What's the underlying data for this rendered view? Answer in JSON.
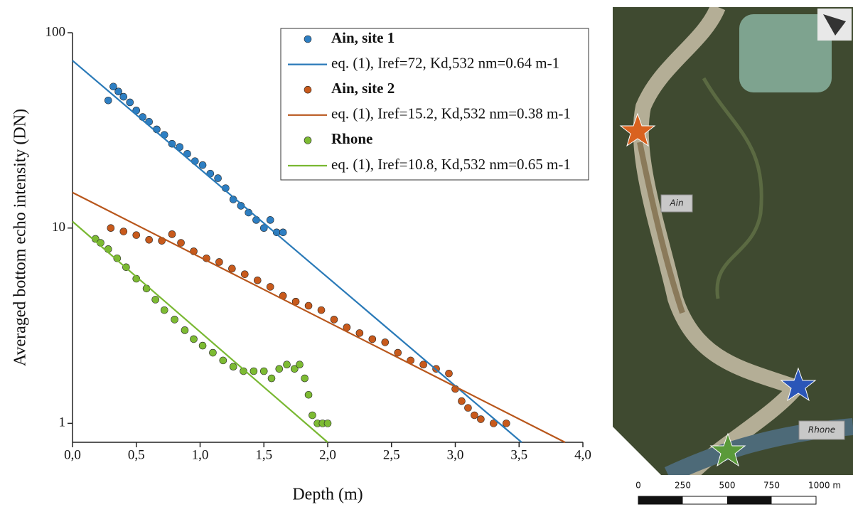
{
  "chart_data": {
    "type": "scatter",
    "x_label": "Depth (m)",
    "y_label": "Averaged bottom echo intensity (DN)",
    "log_y": true,
    "xlim": [
      0,
      4.0
    ],
    "xticks": [
      {
        "value": 0,
        "label": "0,0"
      },
      {
        "value": 0.5,
        "label": "0,5"
      },
      {
        "value": 1.0,
        "label": "1,0"
      },
      {
        "value": 1.5,
        "label": "1,5"
      },
      {
        "value": 2.0,
        "label": "2,0"
      },
      {
        "value": 2.5,
        "label": "2,5"
      },
      {
        "value": 3.0,
        "label": "3,0"
      },
      {
        "value": 3.5,
        "label": "3,5"
      },
      {
        "value": 4.0,
        "label": "4,0"
      }
    ],
    "ylim": [
      0.8,
      100
    ],
    "yticks": [
      1,
      10,
      100
    ],
    "series": [
      {
        "name": "Ain, site 1",
        "type": "scatter",
        "color": "#2e7fc3",
        "x": [
          0.28,
          0.32,
          0.36,
          0.4,
          0.45,
          0.5,
          0.55,
          0.6,
          0.66,
          0.72,
          0.78,
          0.84,
          0.9,
          0.96,
          1.02,
          1.08,
          1.14,
          1.2,
          1.26,
          1.32,
          1.38,
          1.44,
          1.5,
          1.55,
          1.6,
          1.65
        ],
        "values": [
          45,
          53,
          50,
          47,
          44,
          40,
          37,
          35,
          32,
          30,
          27,
          26,
          24,
          22,
          21,
          19,
          18,
          16,
          14,
          13,
          12,
          11,
          10,
          11,
          9.5,
          9.5
        ]
      },
      {
        "name": "eq. (1), Iref=72, Kd,532 nm=0.64 m-1",
        "type": "line",
        "color": "#2a7ab8",
        "x": [
          0,
          3.52
        ],
        "values": [
          72,
          0.8
        ]
      },
      {
        "name": "Ain, site 2",
        "type": "scatter",
        "color": "#c85a1c",
        "x": [
          0.3,
          0.4,
          0.5,
          0.6,
          0.7,
          0.78,
          0.85,
          0.95,
          1.05,
          1.15,
          1.25,
          1.35,
          1.45,
          1.55,
          1.65,
          1.75,
          1.85,
          1.95,
          2.05,
          2.15,
          2.25,
          2.35,
          2.45,
          2.55,
          2.65,
          2.75,
          2.85,
          2.95,
          3.0,
          3.05,
          3.1,
          3.15,
          3.2,
          3.3,
          3.4
        ],
        "values": [
          10,
          9.6,
          9.2,
          8.7,
          8.6,
          9.3,
          8.4,
          7.6,
          7,
          6.7,
          6.2,
          5.8,
          5.4,
          5,
          4.5,
          4.2,
          4,
          3.8,
          3.4,
          3.1,
          2.9,
          2.7,
          2.6,
          2.3,
          2.1,
          2.0,
          1.9,
          1.8,
          1.5,
          1.3,
          1.2,
          1.1,
          1.05,
          1.0,
          1.0
        ]
      },
      {
        "name": "eq. (1), Iref=15.2, Kd,532 nm=0.38 m-1",
        "type": "line",
        "color": "#b8561b",
        "x": [
          0,
          3.86
        ],
        "values": [
          15.2,
          0.8
        ]
      },
      {
        "name": "Rhone",
        "type": "scatter",
        "color": "#7dbb33",
        "x": [
          0.18,
          0.22,
          0.28,
          0.35,
          0.42,
          0.5,
          0.58,
          0.65,
          0.72,
          0.8,
          0.88,
          0.95,
          1.02,
          1.1,
          1.18,
          1.26,
          1.34,
          1.42,
          1.5,
          1.56,
          1.62,
          1.68,
          1.74,
          1.78,
          1.82,
          1.85,
          1.88,
          1.92,
          1.96,
          2.0
        ],
        "values": [
          8.8,
          8.4,
          7.8,
          7,
          6.3,
          5.5,
          4.9,
          4.3,
          3.8,
          3.4,
          3.0,
          2.7,
          2.5,
          2.3,
          2.1,
          1.95,
          1.85,
          1.85,
          1.85,
          1.7,
          1.9,
          2.0,
          1.9,
          2.0,
          1.7,
          1.4,
          1.1,
          1.0,
          1.0,
          1.0
        ]
      },
      {
        "name": "eq. (1), Iref=10.8, Kd,532 nm=0.65 m-1",
        "type": "line",
        "color": "#79b832",
        "x": [
          0,
          2.0
        ],
        "values": [
          10.8,
          0.8
        ]
      }
    ]
  },
  "map": {
    "labels": [
      "Ain",
      "Rhone"
    ],
    "scale_labels": [
      "0",
      "250",
      "500",
      "750",
      "1000 m"
    ]
  }
}
